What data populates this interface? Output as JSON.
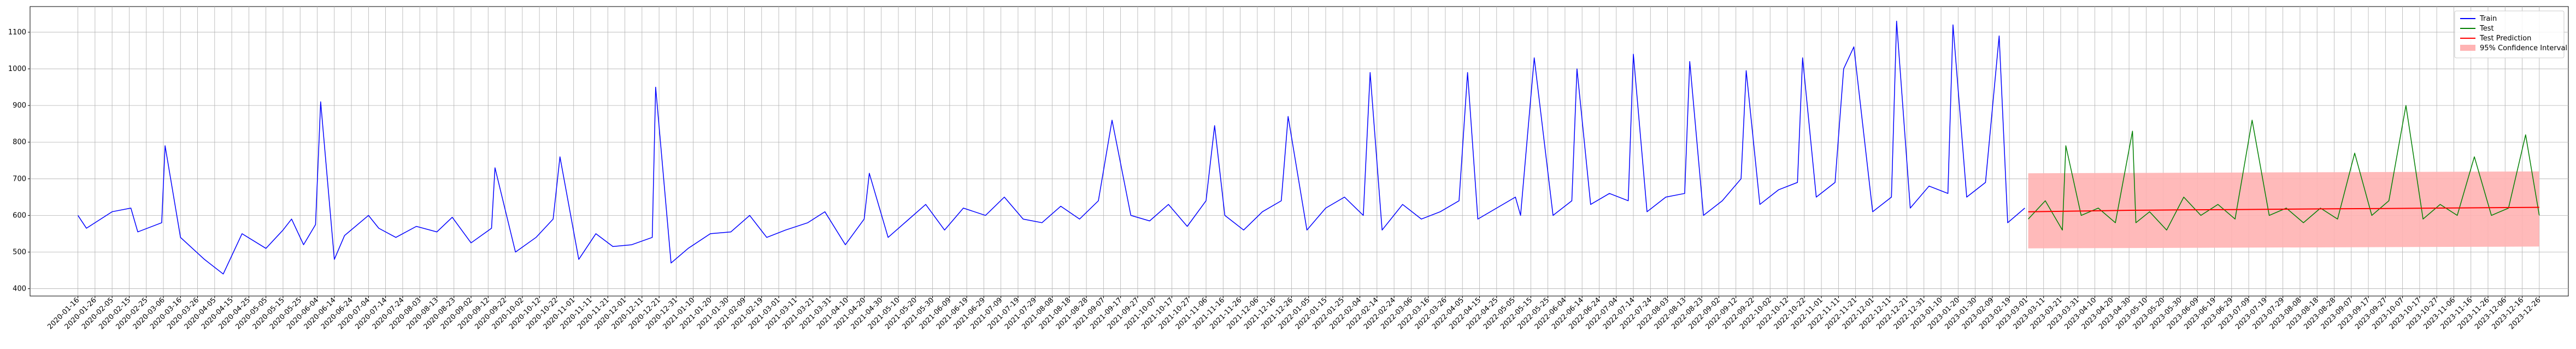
{
  "chart_data": {
    "type": "line",
    "title": "",
    "xlabel": "",
    "ylabel": "",
    "ylim": [
      380,
      1170
    ],
    "xlim": [
      "2019-12-19",
      "2024-01-12"
    ],
    "yticks": [
      400,
      500,
      600,
      700,
      800,
      900,
      1000,
      1100
    ],
    "grid": true,
    "legend": {
      "position": "top-right",
      "entries": [
        {
          "label": "Train",
          "color": "#0000ff",
          "kind": "line"
        },
        {
          "label": "Test",
          "color": "#008000",
          "kind": "line"
        },
        {
          "label": "Test Prediction",
          "color": "#ff0000",
          "kind": "line"
        },
        {
          "label": "95% Confidence Interval",
          "color": "#ffb3b3",
          "kind": "patch"
        }
      ]
    },
    "x_tick_labels": [
      "2020-01-16",
      "2020-01-26",
      "2020-02-05",
      "2020-02-15",
      "2020-02-25",
      "2020-03-06",
      "2020-03-16",
      "2020-03-26",
      "2020-04-05",
      "2020-04-15",
      "2020-04-25",
      "2020-05-05",
      "2020-05-15",
      "2020-05-25",
      "2020-06-04",
      "2020-06-14",
      "2020-06-24",
      "2020-07-04",
      "2020-07-14",
      "2020-07-24",
      "2020-08-03",
      "2020-08-13",
      "2020-08-23",
      "2020-09-02",
      "2020-09-12",
      "2020-09-22",
      "2020-10-02",
      "2020-10-12",
      "2020-10-22",
      "2020-11-01",
      "2020-11-11",
      "2020-11-21",
      "2020-12-01",
      "2020-12-11",
      "2020-12-21",
      "2020-12-31",
      "2021-01-10",
      "2021-01-20",
      "2021-01-30",
      "2021-02-09",
      "2021-02-19",
      "2021-03-01",
      "2021-03-11",
      "2021-03-21",
      "2021-03-31",
      "2021-04-10",
      "2021-04-20",
      "2021-04-30",
      "2021-05-10",
      "2021-05-20",
      "2021-05-30",
      "2021-06-09",
      "2021-06-19",
      "2021-06-29",
      "2021-07-09",
      "2021-07-19",
      "2021-07-29",
      "2021-08-08",
      "2021-08-18",
      "2021-08-28",
      "2021-09-07",
      "2021-09-17",
      "2021-09-27",
      "2021-10-07",
      "2021-10-17",
      "2021-10-27",
      "2021-11-06",
      "2021-11-16",
      "2021-11-26",
      "2021-12-06",
      "2021-12-16",
      "2021-12-26",
      "2022-01-05",
      "2022-01-15",
      "2022-01-25",
      "2022-02-04",
      "2022-02-14",
      "2022-02-24",
      "2022-03-06",
      "2022-03-16",
      "2022-03-26",
      "2022-04-05",
      "2022-04-15",
      "2022-04-25",
      "2022-05-05",
      "2022-05-15",
      "2022-05-25",
      "2022-06-04",
      "2022-06-14",
      "2022-06-24",
      "2022-07-04",
      "2022-07-14",
      "2022-07-24",
      "2022-08-03",
      "2022-08-13",
      "2022-08-23",
      "2022-09-02",
      "2022-09-12",
      "2022-09-22",
      "2022-10-02",
      "2022-10-12",
      "2022-10-22",
      "2022-11-01",
      "2022-11-11",
      "2022-11-21",
      "2022-12-01",
      "2022-12-11",
      "2022-12-21",
      "2022-12-31",
      "2023-01-10",
      "2023-01-20",
      "2023-01-30",
      "2023-02-09",
      "2023-02-19",
      "2023-03-01",
      "2023-03-11",
      "2023-03-21",
      "2023-03-31",
      "2023-04-10",
      "2023-04-20",
      "2023-04-30",
      "2023-05-10",
      "2023-05-20",
      "2023-05-30",
      "2023-06-09",
      "2023-06-19",
      "2023-06-29",
      "2023-07-09",
      "2023-07-19",
      "2023-07-29",
      "2023-08-08",
      "2023-08-18",
      "2023-08-28",
      "2023-09-07",
      "2023-09-17",
      "2023-09-27",
      "2023-10-07",
      "2023-10-17",
      "2023-10-27",
      "2023-11-06",
      "2023-11-16",
      "2023-11-26",
      "2023-12-06",
      "2023-12-16",
      "2023-12-26"
    ],
    "series": [
      {
        "name": "Train",
        "color": "#0000ff",
        "x": [
          "2020-01-16",
          "2020-01-21",
          "2020-02-05",
          "2020-02-16",
          "2020-02-20",
          "2020-03-05",
          "2020-03-07",
          "2020-03-16",
          "2020-03-30",
          "2020-04-10",
          "2020-04-21",
          "2020-05-05",
          "2020-05-15",
          "2020-05-20",
          "2020-05-27",
          "2020-06-03",
          "2020-06-06",
          "2020-06-14",
          "2020-06-20",
          "2020-07-04",
          "2020-07-10",
          "2020-07-20",
          "2020-08-01",
          "2020-08-13",
          "2020-08-22",
          "2020-09-02",
          "2020-09-14",
          "2020-09-16",
          "2020-09-28",
          "2020-10-10",
          "2020-10-20",
          "2020-10-24",
          "2020-11-04",
          "2020-11-14",
          "2020-11-24",
          "2020-12-05",
          "2020-12-17",
          "2020-12-19",
          "2020-12-28",
          "2021-01-07",
          "2021-01-20",
          "2021-02-01",
          "2021-02-12",
          "2021-02-22",
          "2021-03-05",
          "2021-03-18",
          "2021-03-28",
          "2021-04-09",
          "2021-04-20",
          "2021-04-23",
          "2021-05-04",
          "2021-05-15",
          "2021-05-26",
          "2021-06-06",
          "2021-06-17",
          "2021-06-30",
          "2021-07-11",
          "2021-07-22",
          "2021-08-02",
          "2021-08-13",
          "2021-08-24",
          "2021-09-04",
          "2021-09-12",
          "2021-09-23",
          "2021-10-04",
          "2021-10-15",
          "2021-10-26",
          "2021-11-06",
          "2021-11-11",
          "2021-11-17",
          "2021-11-28",
          "2021-12-09",
          "2021-12-20",
          "2021-12-24",
          "2022-01-04",
          "2022-01-15",
          "2022-01-26",
          "2022-02-06",
          "2022-02-10",
          "2022-02-17",
          "2022-03-01",
          "2022-03-12",
          "2022-03-23",
          "2022-04-03",
          "2022-04-08",
          "2022-04-14",
          "2022-04-25",
          "2022-05-06",
          "2022-05-09",
          "2022-05-17",
          "2022-05-28",
          "2022-06-08",
          "2022-06-11",
          "2022-06-19",
          "2022-06-30",
          "2022-07-11",
          "2022-07-14",
          "2022-07-22",
          "2022-08-02",
          "2022-08-13",
          "2022-08-16",
          "2022-08-24",
          "2022-09-04",
          "2022-09-15",
          "2022-09-18",
          "2022-09-26",
          "2022-10-07",
          "2022-10-18",
          "2022-10-21",
          "2022-10-29",
          "2022-11-09",
          "2022-11-14",
          "2022-11-20",
          "2022-12-01",
          "2022-12-12",
          "2022-12-15",
          "2022-12-23",
          "2023-01-03",
          "2023-01-14",
          "2023-01-17",
          "2023-01-25",
          "2023-02-05",
          "2023-02-13",
          "2023-02-18",
          "2023-02-28"
        ],
        "values": [
          600,
          565,
          610,
          620,
          555,
          580,
          790,
          540,
          480,
          440,
          550,
          510,
          560,
          590,
          520,
          575,
          910,
          480,
          545,
          600,
          565,
          540,
          570,
          555,
          595,
          525,
          565,
          730,
          500,
          540,
          590,
          760,
          480,
          550,
          515,
          520,
          540,
          950,
          470,
          510,
          550,
          555,
          600,
          540,
          560,
          580,
          610,
          520,
          590,
          715,
          540,
          585,
          630,
          560,
          620,
          600,
          650,
          590,
          580,
          625,
          590,
          640,
          860,
          600,
          585,
          630,
          570,
          640,
          845,
          600,
          560,
          610,
          640,
          870,
          560,
          620,
          650,
          600,
          990,
          560,
          630,
          590,
          610,
          640,
          990,
          590,
          620,
          650,
          600,
          1030,
          600,
          640,
          1000,
          630,
          660,
          640,
          1040,
          610,
          650,
          660,
          1020,
          600,
          640,
          700,
          995,
          630,
          670,
          690,
          1030,
          650,
          690,
          1000,
          1060,
          610,
          650,
          1130,
          620,
          680,
          660,
          1120,
          650,
          690,
          1090,
          580,
          620
        ]
      },
      {
        "name": "Test",
        "color": "#008000",
        "x": [
          "2023-03-02",
          "2023-03-12",
          "2023-03-22",
          "2023-03-24",
          "2023-04-02",
          "2023-04-12",
          "2023-04-22",
          "2023-05-02",
          "2023-05-04",
          "2023-05-12",
          "2023-05-22",
          "2023-06-01",
          "2023-06-11",
          "2023-06-21",
          "2023-07-01",
          "2023-07-11",
          "2023-07-21",
          "2023-07-31",
          "2023-08-10",
          "2023-08-20",
          "2023-08-30",
          "2023-09-09",
          "2023-09-19",
          "2023-09-29",
          "2023-10-09",
          "2023-10-19",
          "2023-10-29",
          "2023-11-08",
          "2023-11-18",
          "2023-11-28",
          "2023-12-08",
          "2023-12-18",
          "2023-12-26"
        ],
        "values": [
          590,
          640,
          560,
          790,
          600,
          620,
          580,
          830,
          580,
          610,
          560,
          650,
          600,
          630,
          590,
          860,
          600,
          620,
          580,
          620,
          590,
          770,
          600,
          640,
          900,
          590,
          630,
          600,
          760,
          600,
          620,
          820,
          600
        ]
      },
      {
        "name": "Test Prediction",
        "color": "#ff0000",
        "x": [
          "2023-03-02",
          "2023-04-01",
          "2023-05-01",
          "2023-05-31",
          "2023-06-30",
          "2023-07-30",
          "2023-08-29",
          "2023-09-28",
          "2023-10-28",
          "2023-11-27",
          "2023-12-26"
        ],
        "values": [
          610,
          612,
          614,
          615,
          616,
          617,
          618,
          619,
          620,
          621,
          622
        ]
      }
    ],
    "confidence_interval": {
      "label": "95% Confidence Interval",
      "color": "#ffb3b3",
      "x": [
        "2023-03-02",
        "2023-12-26"
      ],
      "lower": [
        510,
        515
      ],
      "upper": [
        715,
        720
      ]
    }
  }
}
